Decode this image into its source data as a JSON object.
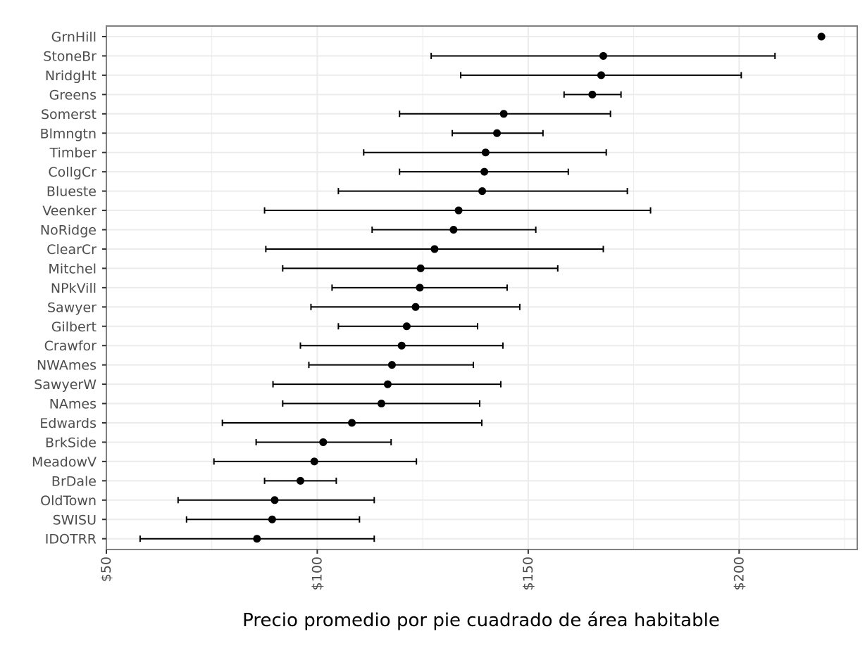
{
  "chart_data": {
    "type": "scatter",
    "subtype": "point-range",
    "title": "",
    "xlabel": "Precio  promedio por pie cuadrado de área habitable",
    "ylabel": "",
    "xlim": [
      50,
      228
    ],
    "x_ticks": [
      50,
      100,
      150,
      200
    ],
    "x_tick_labels": [
      "$50",
      "$100",
      "$150",
      "$200"
    ],
    "x_tick_rotation": 90,
    "grid": true,
    "categories": [
      "GrnHill",
      "StoneBr",
      "NridgHt",
      "Greens",
      "Somerst",
      "Blmngtn",
      "Timber",
      "CollgCr",
      "Blueste",
      "Veenker",
      "NoRidge",
      "ClearCr",
      "Mitchel",
      "NPkVill",
      "Sawyer",
      "Gilbert",
      "Crawfor",
      "NWAmes",
      "SawyerW",
      "NAmes",
      "Edwards",
      "BrkSide",
      "MeadowV",
      "BrDale",
      "OldTown",
      "SWISU",
      "IDOTRR"
    ],
    "series": [
      {
        "mean": [
          219.5,
          167.8,
          167.3,
          165.2,
          144.2,
          142.6,
          139.9,
          139.6,
          139.1,
          133.5,
          132.3,
          127.8,
          124.5,
          124.3,
          123.3,
          121.2,
          120.0,
          117.7,
          116.7,
          115.2,
          108.2,
          101.4,
          99.3,
          96.0,
          89.9,
          89.3,
          85.7
        ],
        "lower": [
          219.5,
          127.0,
          134.0,
          158.5,
          119.5,
          132.0,
          111.0,
          119.5,
          105.0,
          87.5,
          113.0,
          87.8,
          91.8,
          103.5,
          98.5,
          105.0,
          96.0,
          98.0,
          89.5,
          91.8,
          77.5,
          85.5,
          75.5,
          87.5,
          67.0,
          69.0,
          58.0
        ],
        "upper": [
          219.5,
          208.5,
          200.5,
          172.0,
          169.5,
          153.5,
          168.5,
          159.5,
          173.5,
          179.0,
          151.8,
          167.8,
          157.0,
          145.0,
          148.0,
          138.0,
          144.0,
          137.0,
          143.5,
          138.5,
          139.0,
          117.5,
          123.5,
          104.5,
          113.5,
          110.0,
          113.5
        ]
      }
    ]
  },
  "style": {
    "point_color": "#000000",
    "bar_color": "#000000",
    "grid_color": "#ebebeb",
    "panel_border_color": "#808080",
    "tick_label_color": "#4d4d4d"
  }
}
